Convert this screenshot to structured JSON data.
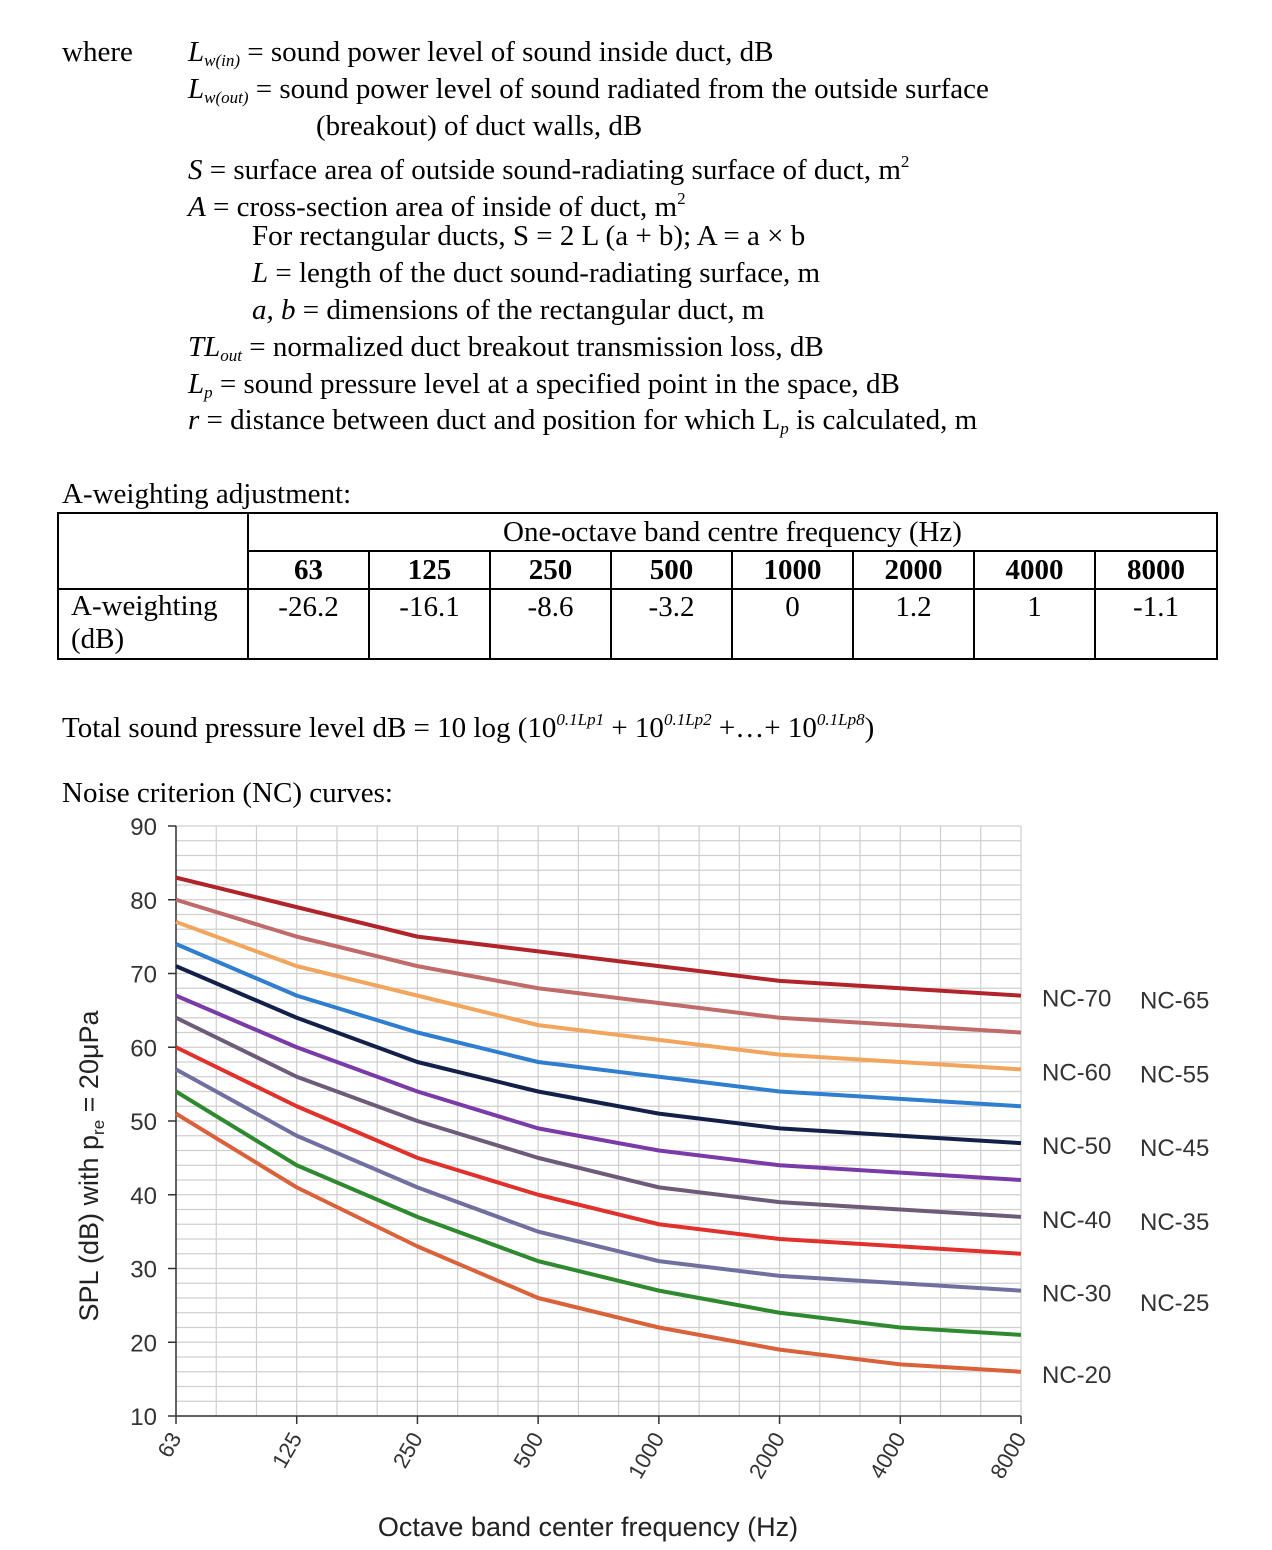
{
  "definitions": {
    "where_label": "where",
    "items": [
      {
        "sym": "L",
        "sub": "w(in)",
        "text": " = sound power level of sound inside duct, dB"
      },
      {
        "sym": "L",
        "sub": "w(out)",
        "text": " = sound power level of sound radiated from the outside surface"
      },
      {
        "text": "(breakout) of duct walls, dB"
      },
      {
        "sym": "S",
        "text": " = surface area of outside sound-radiating surface of duct, m",
        "sup": "2"
      },
      {
        "sym": "A",
        "text": " = cross-section area of inside of duct, m",
        "sup": "2"
      },
      {
        "text": "For rectangular ducts, S = 2 L (a + b); A = a × b"
      },
      {
        "sym": "L",
        "text": " = length of the duct sound-radiating surface, m"
      },
      {
        "sym": "a, b",
        "text": " = dimensions of the rectangular duct, m"
      },
      {
        "sym": "TL",
        "sub": "out",
        "text": " = normalized duct breakout transmission loss, dB"
      },
      {
        "sym": "L",
        "sub": "p",
        "text": " = sound pressure level at a specified point in the space, dB"
      },
      {
        "sym": "r",
        "text": " = distance between duct and position for which L"
      },
      {
        "sym": "",
        "sub": "p",
        "text": " is calculated, m"
      }
    ]
  },
  "a_weighting": {
    "heading": "A-weighting adjustment:",
    "header_span": "One-octave band centre frequency (Hz)",
    "frequencies": [
      "63",
      "125",
      "250",
      "500",
      "1000",
      "2000",
      "4000",
      "8000"
    ],
    "row_label_1": "A-weighting",
    "row_label_2": "(dB)",
    "values": [
      "-26.2",
      "-16.1",
      "-8.6",
      "-3.2",
      "0",
      "1.2",
      "1",
      "-1.1"
    ]
  },
  "formula": {
    "prefix": "Total sound pressure level dB = 10 log (10",
    "exp1": "0.1Lp1",
    "mid1": " + 10",
    "exp2": "0.1Lp2",
    "mid2": " +…+ 10",
    "exp3": "0.1Lp8",
    "suffix": ")"
  },
  "nc_heading": "Noise criterion (NC) curves:",
  "chart_data": {
    "type": "line",
    "xlabel": "Octave band center frequency (Hz)",
    "ylabel": "SPL (dB) with p",
    "ylabel_sub": "re",
    "ylabel_end": " = 20μPa",
    "x": [
      "63",
      "125",
      "250",
      "500",
      "1000",
      "2000",
      "4000",
      "8000"
    ],
    "ylim": [
      10,
      90
    ],
    "yticks": [
      "10",
      "20",
      "30",
      "40",
      "50",
      "60",
      "70",
      "80",
      "90"
    ],
    "grid": true,
    "x_scale": "log2",
    "series": [
      {
        "name": "NC-70",
        "color": "#b0242a",
        "values": [
          83,
          79,
          75,
          73,
          71,
          69,
          68,
          67
        ]
      },
      {
        "name": "NC-65",
        "color": "#c06a6a",
        "values": [
          80,
          75,
          71,
          68,
          66,
          64,
          63,
          62
        ]
      },
      {
        "name": "NC-60",
        "color": "#f2a55c",
        "values": [
          77,
          71,
          67,
          63,
          61,
          59,
          58,
          57
        ]
      },
      {
        "name": "NC-55",
        "color": "#2f7ed0",
        "values": [
          74,
          67,
          62,
          58,
          56,
          54,
          53,
          52
        ]
      },
      {
        "name": "NC-50",
        "color": "#13204a",
        "values": [
          71,
          64,
          58,
          54,
          51,
          49,
          48,
          47
        ]
      },
      {
        "name": "NC-45",
        "color": "#7a3aa8",
        "values": [
          67,
          60,
          54,
          49,
          46,
          44,
          43,
          42
        ]
      },
      {
        "name": "NC-40",
        "color": "#6e5b7a",
        "values": [
          64,
          56,
          50,
          45,
          41,
          39,
          38,
          37
        ]
      },
      {
        "name": "NC-35",
        "color": "#e0312c",
        "values": [
          60,
          52,
          45,
          40,
          36,
          34,
          33,
          32
        ]
      },
      {
        "name": "NC-30",
        "color": "#7070a0",
        "values": [
          57,
          48,
          41,
          35,
          31,
          29,
          28,
          27
        ]
      },
      {
        "name": "NC-25",
        "color": "#2f8a2f",
        "values": [
          54,
          44,
          37,
          31,
          27,
          24,
          22,
          21
        ]
      },
      {
        "name": "NC-20",
        "color": "#d9623a",
        "values": [
          51,
          41,
          33,
          26,
          22,
          19,
          17,
          16
        ]
      }
    ],
    "legend_placement": "right"
  }
}
